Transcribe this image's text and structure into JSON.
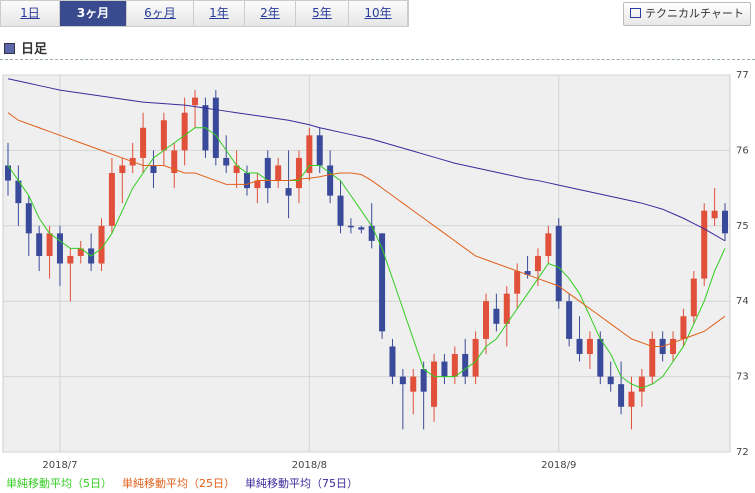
{
  "tabs": [
    "1日",
    "3ヶ月",
    "6ヶ月",
    "1年",
    "2年",
    "5年",
    "10年"
  ],
  "selected_tab": 1,
  "button": "テクニカルチャート",
  "heading": "日足",
  "chart_data": {
    "type": "candlestick",
    "categories": [
      null,
      null,
      null,
      null,
      null,
      "2018/7",
      null,
      null,
      null,
      null,
      null,
      null,
      null,
      null,
      null,
      null,
      null,
      null,
      null,
      null,
      null,
      null,
      null,
      null,
      null,
      null,
      null,
      null,
      null,
      "2018/8",
      null,
      null,
      null,
      null,
      null,
      null,
      null,
      null,
      null,
      null,
      null,
      null,
      null,
      null,
      null,
      null,
      null,
      null,
      null,
      null,
      null,
      null,
      null,
      "2018/9",
      null,
      null,
      null,
      null,
      null,
      null,
      null,
      null,
      null,
      null,
      null,
      null,
      null,
      null,
      null,
      null
    ],
    "open": [
      75.8,
      75.6,
      75.3,
      74.9,
      74.6,
      74.9,
      74.5,
      74.6,
      74.7,
      74.5,
      75.0,
      75.7,
      75.8,
      75.9,
      75.8,
      76.0,
      75.7,
      76.0,
      76.6,
      76.6,
      76.7,
      75.9,
      75.7,
      75.7,
      75.5,
      75.9,
      75.6,
      75.5,
      75.5,
      75.7,
      76.2,
      75.8,
      75.4,
      75.0,
      74.98,
      75.0,
      74.9,
      73.4,
      73.0,
      72.8,
      73.1,
      72.6,
      73.2,
      73.0,
      73.3,
      73.0,
      73.5,
      73.9,
      73.7,
      74.1,
      74.4,
      74.4,
      74.6,
      75.0,
      74.0,
      73.5,
      73.3,
      73.5,
      73.0,
      72.9,
      72.6,
      72.8,
      73.0,
      73.5,
      73.3,
      73.5,
      73.8,
      74.3,
      75.1,
      75.2
    ],
    "high": [
      76.1,
      75.8,
      75.4,
      75.0,
      75.0,
      75.0,
      74.7,
      74.8,
      74.9,
      75.1,
      75.9,
      75.9,
      76.1,
      76.5,
      76.0,
      76.5,
      76.1,
      76.7,
      76.8,
      76.7,
      76.8,
      76.2,
      76.0,
      75.8,
      75.7,
      76.0,
      75.9,
      76.0,
      76.0,
      76.3,
      76.3,
      76.0,
      75.6,
      75.1,
      75.0,
      75.3,
      74.9,
      73.5,
      73.1,
      73.1,
      73.2,
      73.3,
      73.3,
      73.4,
      73.5,
      73.6,
      74.1,
      74.1,
      74.2,
      74.5,
      74.6,
      74.7,
      75.0,
      75.1,
      74.1,
      73.8,
      73.6,
      73.6,
      73.2,
      73.2,
      73.0,
      73.1,
      73.6,
      73.6,
      73.6,
      73.9,
      74.4,
      75.3,
      75.5,
      75.3
    ],
    "low": [
      75.4,
      75.0,
      74.6,
      74.4,
      74.3,
      74.2,
      74.0,
      74.5,
      74.4,
      74.4,
      74.9,
      75.3,
      75.7,
      75.7,
      75.5,
      75.8,
      75.5,
      75.8,
      76.3,
      75.9,
      75.8,
      75.7,
      75.5,
      75.4,
      75.3,
      75.3,
      75.5,
      75.1,
      75.3,
      75.6,
      75.7,
      75.3,
      74.9,
      74.9,
      74.9,
      74.7,
      73.5,
      72.9,
      72.3,
      72.5,
      72.3,
      72.4,
      72.9,
      72.9,
      72.9,
      72.9,
      73.3,
      73.6,
      73.4,
      73.9,
      74.3,
      74.2,
      74.5,
      73.9,
      73.4,
      73.2,
      73.1,
      72.9,
      72.8,
      72.5,
      72.3,
      72.6,
      72.9,
      73.2,
      73.2,
      73.4,
      73.7,
      74.2,
      75.0,
      74.8
    ],
    "close": [
      75.6,
      75.3,
      74.9,
      74.6,
      74.9,
      74.5,
      74.6,
      74.7,
      74.5,
      75.0,
      75.7,
      75.8,
      75.9,
      76.3,
      75.7,
      76.4,
      76.0,
      76.5,
      76.7,
      76.0,
      75.9,
      75.8,
      75.8,
      75.5,
      75.6,
      75.5,
      75.8,
      75.4,
      75.9,
      76.2,
      75.8,
      75.4,
      75.0,
      74.98,
      74.95,
      74.8,
      73.6,
      73.0,
      72.9,
      73.0,
      72.8,
      73.2,
      73.0,
      73.3,
      73.0,
      73.5,
      74.0,
      73.7,
      74.1,
      74.4,
      74.35,
      74.6,
      74.9,
      74.0,
      73.5,
      73.3,
      73.5,
      73.0,
      72.9,
      72.6,
      72.8,
      73.0,
      73.5,
      73.3,
      73.5,
      73.8,
      74.3,
      75.2,
      75.2,
      74.9
    ],
    "up_color": "#e0503a",
    "down_color": "#3a4a9a",
    "series": [
      {
        "name": "単純移動平均（5日）",
        "color": "#33cc22",
        "values": [
          75.8,
          75.6,
          75.4,
          75.1,
          74.9,
          74.8,
          74.7,
          74.7,
          74.6,
          74.7,
          74.9,
          75.2,
          75.5,
          75.7,
          75.9,
          76.0,
          76.1,
          76.2,
          76.3,
          76.3,
          76.2,
          76.0,
          75.8,
          75.7,
          75.7,
          75.6,
          75.6,
          75.6,
          75.6,
          75.8,
          75.8,
          75.7,
          75.6,
          75.4,
          75.2,
          75.0,
          74.7,
          74.3,
          73.9,
          73.5,
          73.1,
          73.0,
          73.0,
          73.0,
          73.1,
          73.2,
          73.4,
          73.5,
          73.7,
          73.9,
          74.1,
          74.3,
          74.5,
          74.45,
          74.3,
          74.1,
          73.8,
          73.5,
          73.3,
          73.0,
          72.9,
          72.85,
          72.9,
          73.0,
          73.2,
          73.4,
          73.7,
          74.0,
          74.4,
          74.7
        ]
      },
      {
        "name": "単純移動平均（25日）",
        "color": "#e0601a",
        "values": [
          76.5,
          76.4,
          76.35,
          76.3,
          76.25,
          76.2,
          76.15,
          76.1,
          76.05,
          76.0,
          75.95,
          75.9,
          75.85,
          75.8,
          75.8,
          75.8,
          75.75,
          75.7,
          75.7,
          75.65,
          75.6,
          75.55,
          75.55,
          75.55,
          75.6,
          75.6,
          75.6,
          75.6,
          75.62,
          75.63,
          75.65,
          75.68,
          75.7,
          75.7,
          75.68,
          75.6,
          75.5,
          75.4,
          75.3,
          75.2,
          75.1,
          75.0,
          74.9,
          74.8,
          74.7,
          74.6,
          74.55,
          74.5,
          74.45,
          74.4,
          74.35,
          74.3,
          74.25,
          74.2,
          74.1,
          74.0,
          73.9,
          73.8,
          73.7,
          73.6,
          73.5,
          73.45,
          73.4,
          73.4,
          73.45,
          73.5,
          73.55,
          73.6,
          73.7,
          73.8
        ]
      },
      {
        "name": "単純移動平均（75日）",
        "color": "#3a2a9a",
        "values": [
          76.95,
          76.92,
          76.89,
          76.86,
          76.83,
          76.8,
          76.78,
          76.76,
          76.74,
          76.72,
          76.7,
          76.68,
          76.66,
          76.64,
          76.63,
          76.62,
          76.61,
          76.6,
          76.58,
          76.56,
          76.54,
          76.52,
          76.5,
          76.48,
          76.46,
          76.44,
          76.42,
          76.4,
          76.37,
          76.34,
          76.3,
          76.27,
          76.24,
          76.21,
          76.18,
          76.15,
          76.11,
          76.07,
          76.03,
          75.99,
          75.95,
          75.91,
          75.87,
          75.83,
          75.8,
          75.77,
          75.74,
          75.71,
          75.68,
          75.65,
          75.62,
          75.6,
          75.57,
          75.54,
          75.51,
          75.48,
          75.45,
          75.42,
          75.39,
          75.36,
          75.33,
          75.3,
          75.26,
          75.22,
          75.16,
          75.1,
          75.03,
          74.96,
          74.88,
          74.8
        ]
      }
    ],
    "ylim": [
      72,
      77
    ],
    "yticks": [
      72,
      73,
      74,
      75,
      76,
      77
    ],
    "grid": true
  }
}
